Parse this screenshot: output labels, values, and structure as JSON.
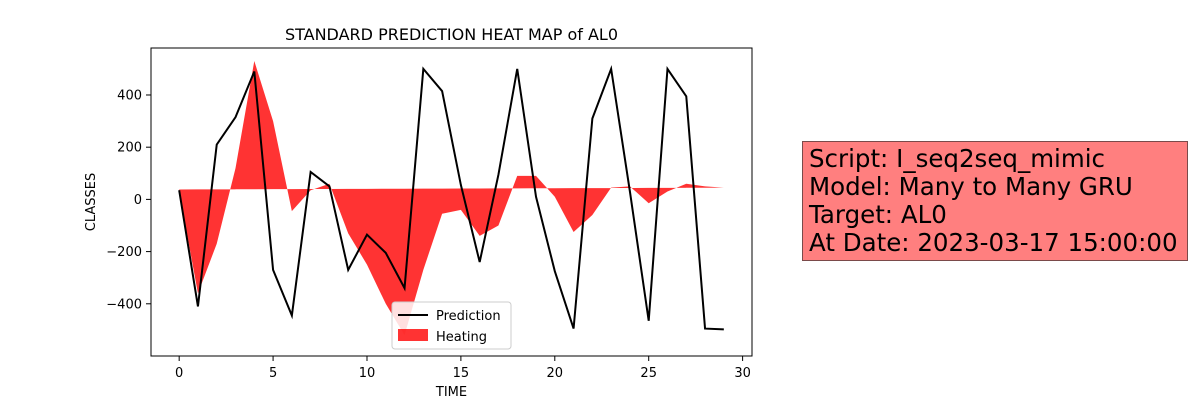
{
  "chart_data": {
    "type": "line",
    "title": "STANDARD PREDICTION HEAT MAP of AL0",
    "xlabel": "TIME",
    "ylabel": "CLASSES",
    "xlim": [
      -1.5,
      30.5
    ],
    "ylim": [
      -600,
      580
    ],
    "xticks": [
      0,
      5,
      10,
      15,
      20,
      25,
      30
    ],
    "yticks": [
      -400,
      -200,
      0,
      200,
      400
    ],
    "legend_location": "lower center",
    "baseline_start": 38,
    "baseline_end": 45,
    "series": [
      {
        "name": "Prediction",
        "kind": "line",
        "color": "#000000",
        "x": [
          0,
          1,
          2,
          3,
          4,
          5,
          6,
          7,
          8,
          9,
          10,
          11,
          12,
          13,
          14,
          15,
          16,
          17,
          18,
          19,
          20,
          21,
          22,
          23,
          24,
          25,
          26,
          27,
          28,
          29
        ],
        "values": [
          35,
          -410,
          210,
          315,
          490,
          -270,
          -445,
          105,
          50,
          -270,
          -135,
          -205,
          -340,
          500,
          415,
          55,
          -240,
          95,
          500,
          10,
          -275,
          -495,
          310,
          500,
          30,
          -465,
          500,
          395,
          -495,
          -498
        ]
      },
      {
        "name": "Heating",
        "kind": "fill_between",
        "color": "#ff0000",
        "opacity": 0.8,
        "x": [
          0,
          1,
          2,
          3,
          4,
          5,
          6,
          7,
          8,
          9,
          10,
          11,
          12,
          13,
          14,
          15,
          16,
          17,
          18,
          19,
          20,
          21,
          22,
          23,
          24,
          25,
          26,
          27,
          28,
          29
        ],
        "values": [
          30,
          -360,
          -170,
          120,
          530,
          300,
          -45,
          35,
          60,
          -130,
          -250,
          -400,
          -520,
          -270,
          -55,
          -40,
          -140,
          -100,
          90,
          90,
          10,
          -125,
          -60,
          45,
          50,
          -15,
          30,
          60,
          50,
          45
        ]
      }
    ]
  },
  "info": {
    "script": "Script: I_seq2seq_mimic",
    "model": "Model: Many to Many GRU",
    "target": "Target: AL0",
    "date": "At Date: 2023-03-17 15:00:00"
  }
}
